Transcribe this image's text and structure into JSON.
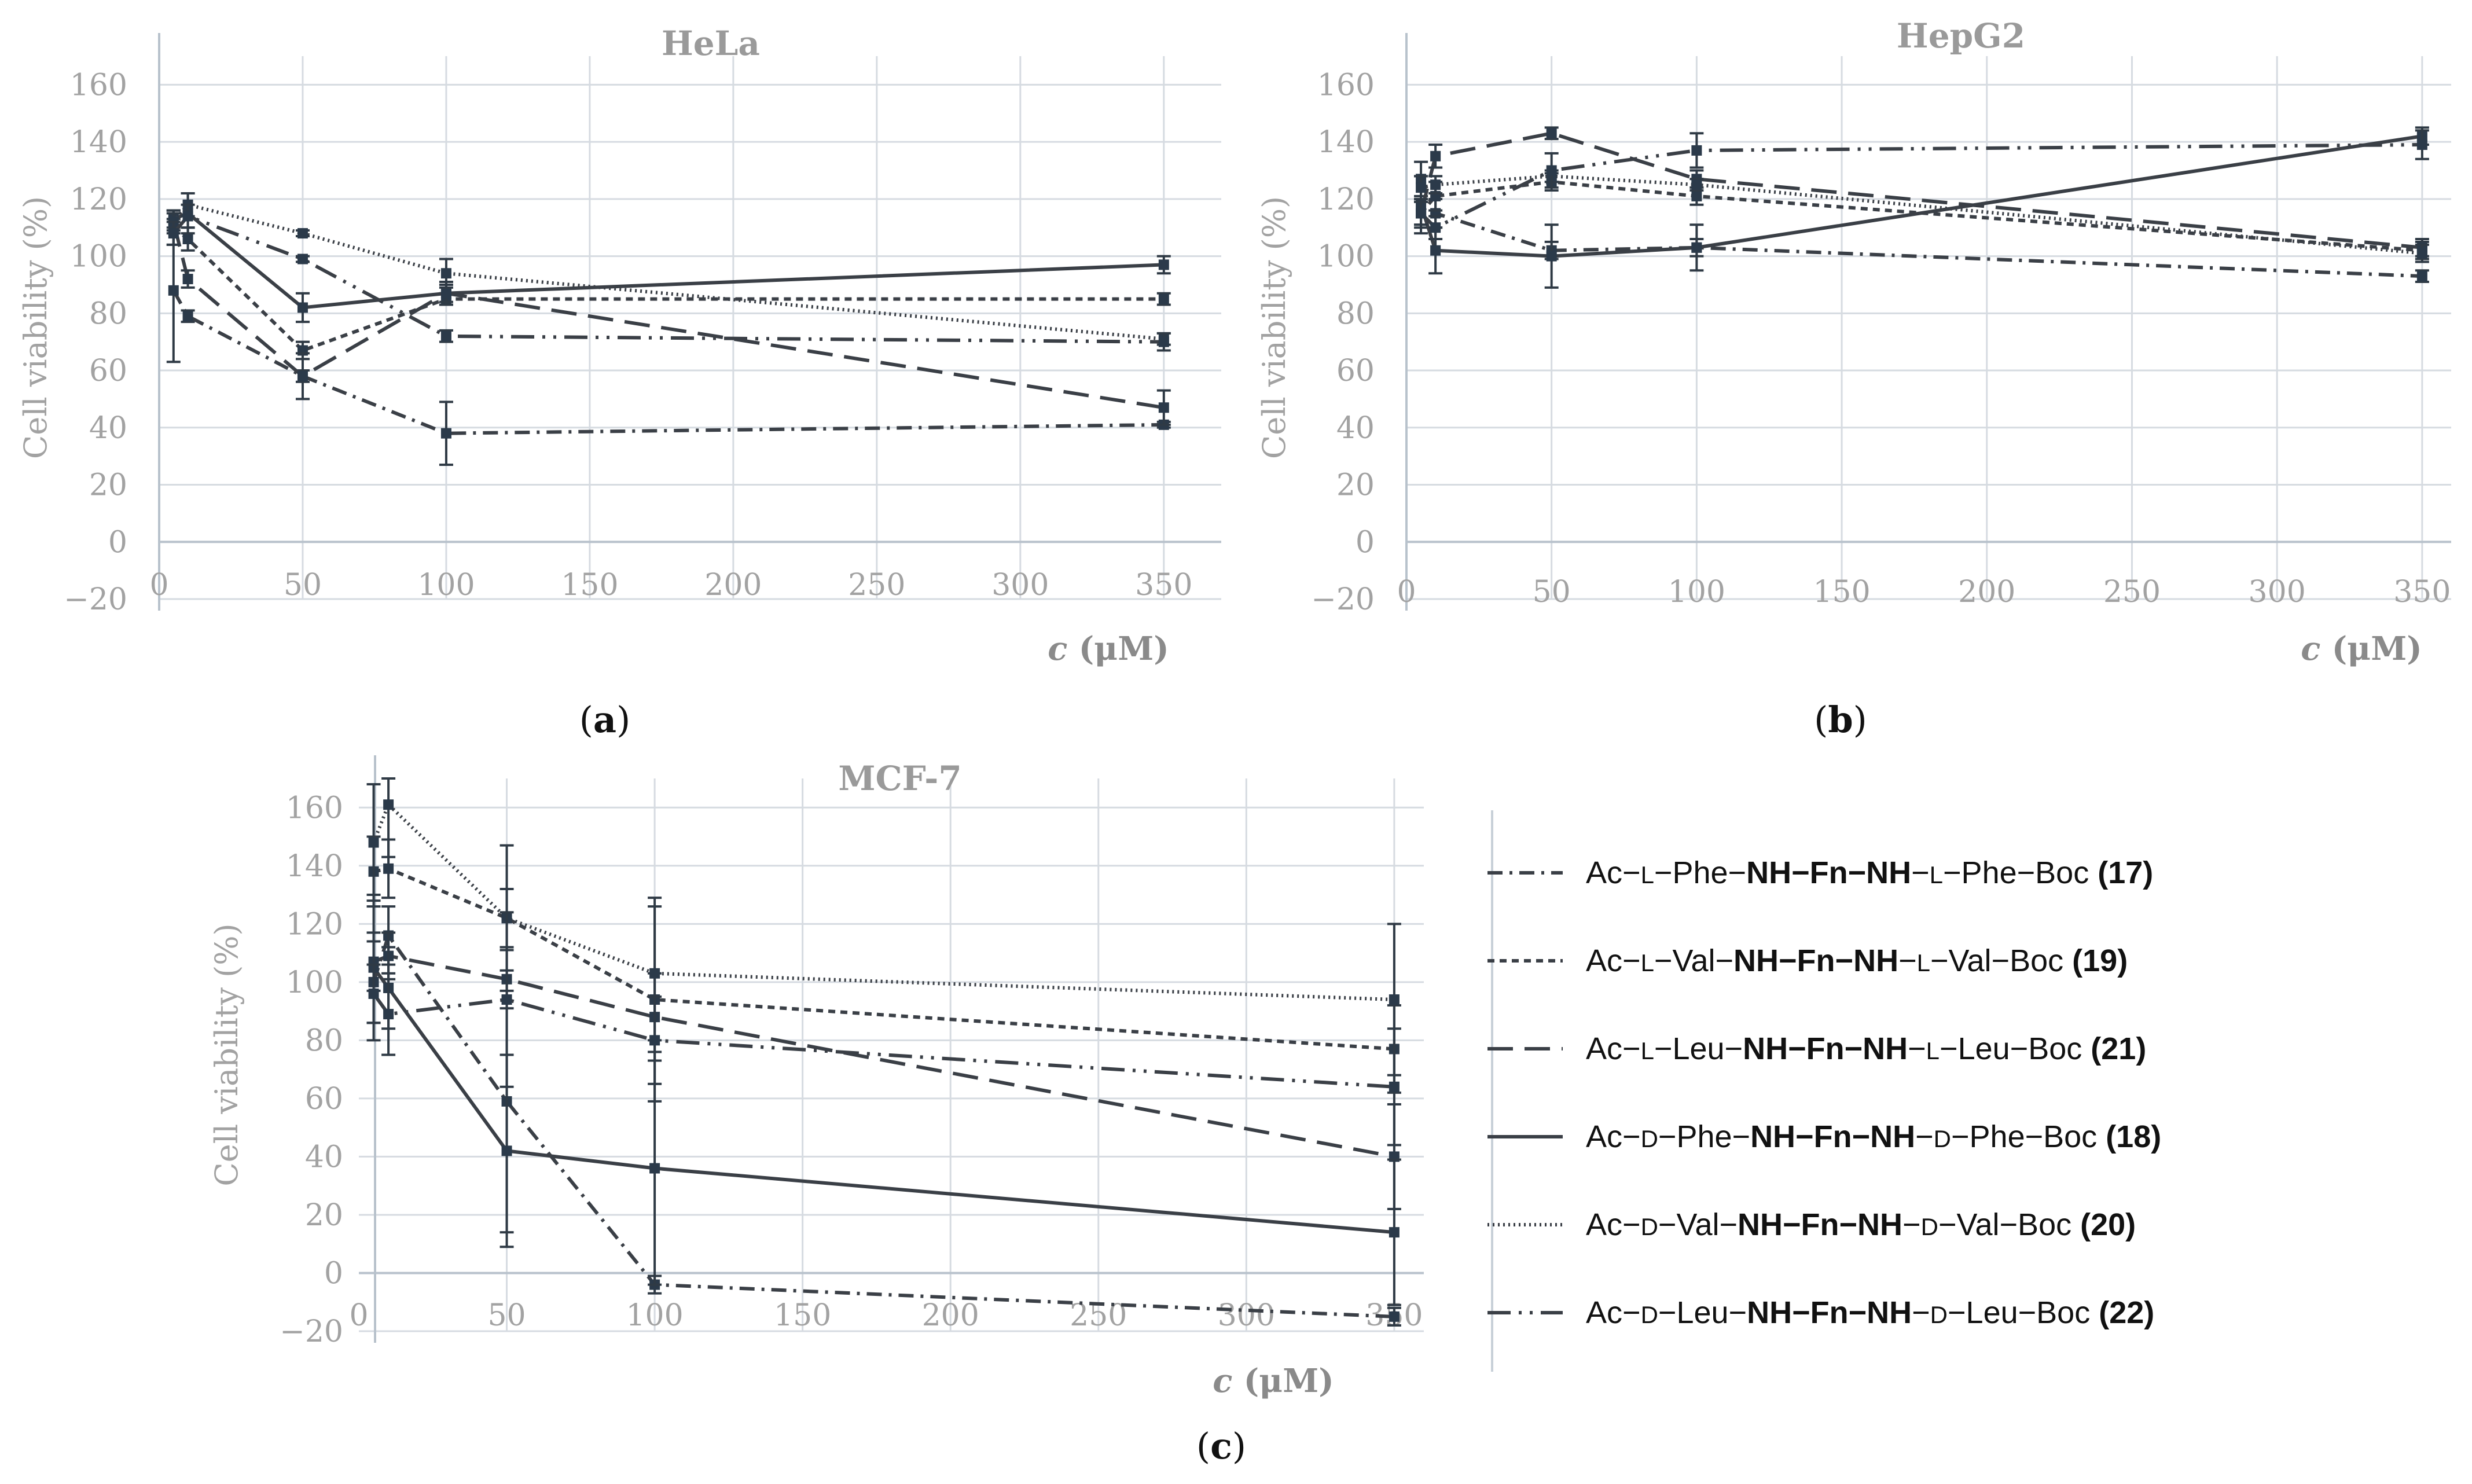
{
  "chart_data": [
    {
      "type": "line",
      "panel_label": [
        "(",
        "a",
        ")"
      ],
      "title": "HeLa",
      "ylabel": "Cell viability (%)",
      "xlabel": [
        "c",
        " (μM)"
      ],
      "xlim": [
        0,
        370
      ],
      "ylim": [
        -20,
        170
      ],
      "xticks": [
        0,
        50,
        100,
        150,
        200,
        250,
        300,
        350
      ],
      "yticks": [
        -20,
        0,
        20,
        40,
        60,
        80,
        100,
        120,
        140,
        160
      ],
      "ytick_labels": [
        "−20",
        "0",
        "20",
        "40",
        "60",
        "80",
        "100",
        "120",
        "140",
        "160"
      ],
      "x": [
        5,
        10,
        50,
        100,
        350
      ],
      "series": [
        {
          "name": "17",
          "dash": "26,12,5,12",
          "values": [
            88,
            79,
            58,
            38,
            41
          ],
          "errors": [
            25,
            2,
            2,
            11,
            1
          ]
        },
        {
          "name": "19",
          "dash": "12,9",
          "values": [
            110,
            106,
            67,
            85,
            85
          ],
          "errors": [
            6,
            4,
            3,
            2,
            2
          ]
        },
        {
          "name": "21",
          "dash": "44,20",
          "values": [
            112,
            92,
            58,
            87,
            47
          ],
          "errors": [
            4,
            3,
            8,
            4,
            6
          ]
        },
        {
          "name": "18",
          "dash": "",
          "values": [
            113,
            115,
            82,
            87,
            97
          ],
          "errors": [
            3,
            7,
            5,
            3,
            3
          ]
        },
        {
          "name": "20",
          "dash": "3,6",
          "values": [
            112,
            118,
            108,
            94,
            71
          ],
          "errors": [
            3,
            4,
            1,
            5,
            2
          ]
        },
        {
          "name": "22",
          "dash": "40,14,5,14,5,14",
          "values": [
            108,
            114,
            99,
            72,
            70
          ],
          "errors": [
            4,
            4,
            1,
            2,
            3
          ]
        }
      ]
    },
    {
      "type": "line",
      "panel_label": [
        "(",
        "b",
        ")"
      ],
      "title": "HepG2",
      "ylabel": "Cell viability (%)",
      "xlabel": [
        "c",
        " (μM)"
      ],
      "xlim": [
        0,
        360
      ],
      "ylim": [
        -20,
        170
      ],
      "xticks": [
        0,
        50,
        100,
        150,
        200,
        250,
        300,
        350
      ],
      "yticks": [
        -20,
        0,
        20,
        40,
        60,
        80,
        100,
        120,
        140,
        160
      ],
      "ytick_labels": [
        "−20",
        "0",
        "20",
        "40",
        "60",
        "80",
        "100",
        "120",
        "140",
        "160"
      ],
      "x": [
        5,
        10,
        50,
        100,
        350
      ],
      "series": [
        {
          "name": "17",
          "dash": "26,12,5,12",
          "values": [
            127,
            115,
            102,
            103,
            93
          ],
          "errors": [
            6,
            5,
            3,
            3,
            2
          ]
        },
        {
          "name": "19",
          "dash": "12,9",
          "values": [
            115,
            121,
            126,
            121,
            102
          ],
          "errors": [
            5,
            5,
            3,
            3,
            3
          ]
        },
        {
          "name": "21",
          "dash": "44,20",
          "values": [
            115,
            135,
            143,
            127,
            103
          ],
          "errors": [
            4,
            4,
            2,
            3,
            3
          ]
        },
        {
          "name": "18",
          "dash": "",
          "values": [
            118,
            102,
            100,
            103,
            142
          ],
          "errors": [
            10,
            8,
            11,
            8,
            3
          ]
        },
        {
          "name": "20",
          "dash": "3,6",
          "values": [
            124,
            125,
            128,
            125,
            101
          ],
          "errors": [
            4,
            3,
            2,
            2,
            3
          ]
        },
        {
          "name": "22",
          "dash": "40,14,5,14,5,14",
          "values": [
            115,
            110,
            130,
            137,
            139
          ],
          "errors": [
            4,
            4,
            6,
            6,
            5
          ]
        }
      ]
    },
    {
      "type": "line",
      "panel_label": [
        "(",
        "c",
        ")"
      ],
      "title": "MCF-7",
      "ylabel": "Cell viability (%)",
      "xlabel": [
        "c",
        " (μM)"
      ],
      "xlim": [
        0,
        360
      ],
      "ylim": [
        -20,
        170
      ],
      "xticks": [
        0,
        50,
        100,
        150,
        200,
        250,
        300,
        350
      ],
      "yticks": [
        -20,
        0,
        20,
        40,
        60,
        80,
        100,
        120,
        140,
        160
      ],
      "ytick_labels": [
        "−20",
        "0",
        "20",
        "40",
        "60",
        "80",
        "100",
        "120",
        "140",
        "160"
      ],
      "x": [
        5,
        10,
        50,
        100,
        350
      ],
      "series": [
        {
          "name": "17",
          "dash": "26,12,5,12",
          "values": [
            100,
            116,
            59,
            -4,
            -15
          ],
          "errors": [
            14,
            10,
            45,
            3,
            3
          ]
        },
        {
          "name": "19",
          "dash": "12,9",
          "values": [
            138,
            139,
            122,
            94,
            77
          ],
          "errors": [
            12,
            10,
            25,
            35,
            15
          ]
        },
        {
          "name": "21",
          "dash": "44,20",
          "values": [
            107,
            109,
            101,
            88,
            40
          ],
          "errors": [
            10,
            8,
            10,
            15,
            18
          ]
        },
        {
          "name": "18",
          "dash": "",
          "values": [
            105,
            98,
            42,
            36,
            14
          ],
          "errors": [
            25,
            14,
            33,
            40,
            25
          ]
        },
        {
          "name": "20",
          "dash": "3,6",
          "values": [
            148,
            161,
            122,
            103,
            94
          ],
          "errors": [
            20,
            18,
            10,
            23,
            26
          ]
        },
        {
          "name": "22",
          "dash": "40,14,5,14,5,14",
          "values": [
            96,
            89,
            94,
            80,
            64
          ],
          "errors": [
            10,
            14,
            30,
            15,
            20
          ]
        }
      ]
    }
  ],
  "legend": [
    {
      "dash": "26,12,5,12",
      "parts": [
        "Ac−",
        "L",
        "−Phe−",
        "NH−Fn−NH",
        "−",
        "L",
        "−Phe−Boc ",
        "(17)"
      ]
    },
    {
      "dash": "12,9",
      "parts": [
        "Ac−",
        "L",
        "−Val−",
        "NH−Fn−NH",
        "−",
        "L",
        "−Val−Boc ",
        "(19)"
      ]
    },
    {
      "dash": "44,20",
      "parts": [
        "Ac−",
        "L",
        "−Leu−",
        "NH−Fn−NH",
        "−",
        "L",
        "−Leu−Boc ",
        "(21)"
      ]
    },
    {
      "dash": "",
      "parts": [
        "Ac−",
        "D",
        "−Phe−",
        "NH−Fn−NH",
        "−",
        "D",
        "−Phe−Boc ",
        "(18)"
      ]
    },
    {
      "dash": "3,6",
      "parts": [
        "Ac−",
        "D",
        "−Val−",
        "NH−Fn−NH",
        "−",
        "D",
        "−Val−Boc ",
        "(20)"
      ]
    },
    {
      "dash": "40,14,5,14,5,14",
      "parts": [
        "Ac−",
        "D",
        "−Leu−",
        "NH−Fn−NH",
        "−",
        "D",
        "−Leu−Boc ",
        "(22)"
      ]
    }
  ]
}
